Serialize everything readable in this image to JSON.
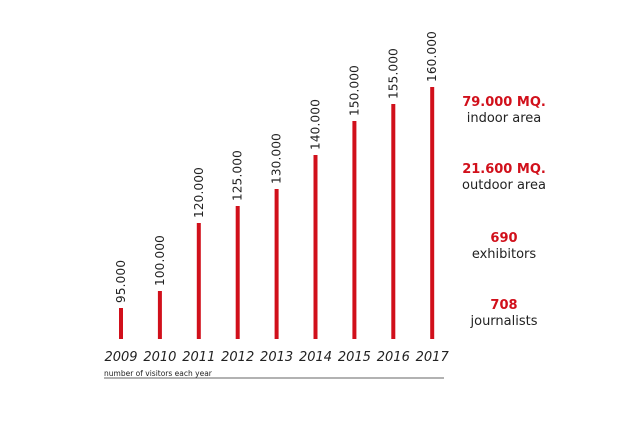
{
  "chart_data": {
    "type": "bar",
    "categories": [
      "2009",
      "2010",
      "2011",
      "2012",
      "2013",
      "2014",
      "2015",
      "2016",
      "2017"
    ],
    "values": [
      95000,
      100000,
      120000,
      125000,
      130000,
      140000,
      150000,
      155000,
      160000
    ],
    "value_labels": [
      "95.000",
      "100.000",
      "120.000",
      "125.000",
      "130.000",
      "140.000",
      "150.000",
      "155.000",
      "160.000"
    ],
    "xlabel": "number of visitors each year",
    "ylabel": "",
    "title": "",
    "grid": false,
    "ylim": [
      90000,
      160000
    ],
    "bar_color": "#d1101b"
  },
  "stats": [
    {
      "value": "79.000 MQ.",
      "label": "indoor area"
    },
    {
      "value": "21.600 MQ.",
      "label": "outdoor area"
    },
    {
      "value": "690",
      "label": "exhibitors"
    },
    {
      "value": "708",
      "label": "journalists"
    }
  ],
  "colors": {
    "accent": "#d1101b",
    "text": "#222222"
  }
}
